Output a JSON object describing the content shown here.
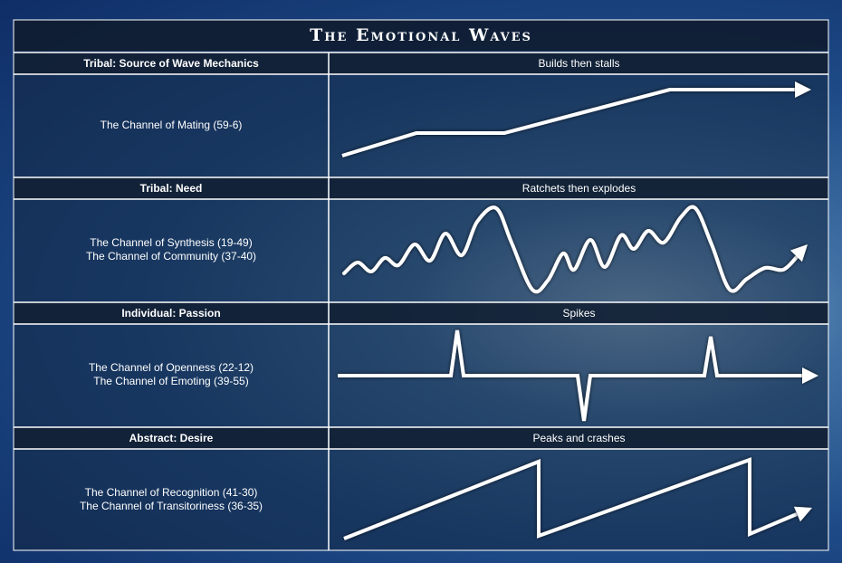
{
  "title": "The Emotional Waves",
  "sections": [
    {
      "heading": "Tribal: Source of Wave Mechanics",
      "wave_label": "Builds then stalls",
      "channels": [
        "The Channel of Mating (59-6)"
      ]
    },
    {
      "heading": "Tribal: Need",
      "wave_label": "Ratchets then explodes",
      "channels": [
        "The Channel of Synthesis (19-49)",
        "The Channel of Community (37-40)"
      ]
    },
    {
      "heading": "Individual: Passion",
      "wave_label": "Spikes",
      "channels": [
        "The Channel of Openness (22-12)",
        "The Channel of Emoting (39-55)"
      ]
    },
    {
      "heading": "Abstract: Desire",
      "wave_label": "Peaks and crashes",
      "channels": [
        "The Channel of Recognition (41-30)",
        "The Channel of Transitoriness (36-35)"
      ]
    }
  ]
}
